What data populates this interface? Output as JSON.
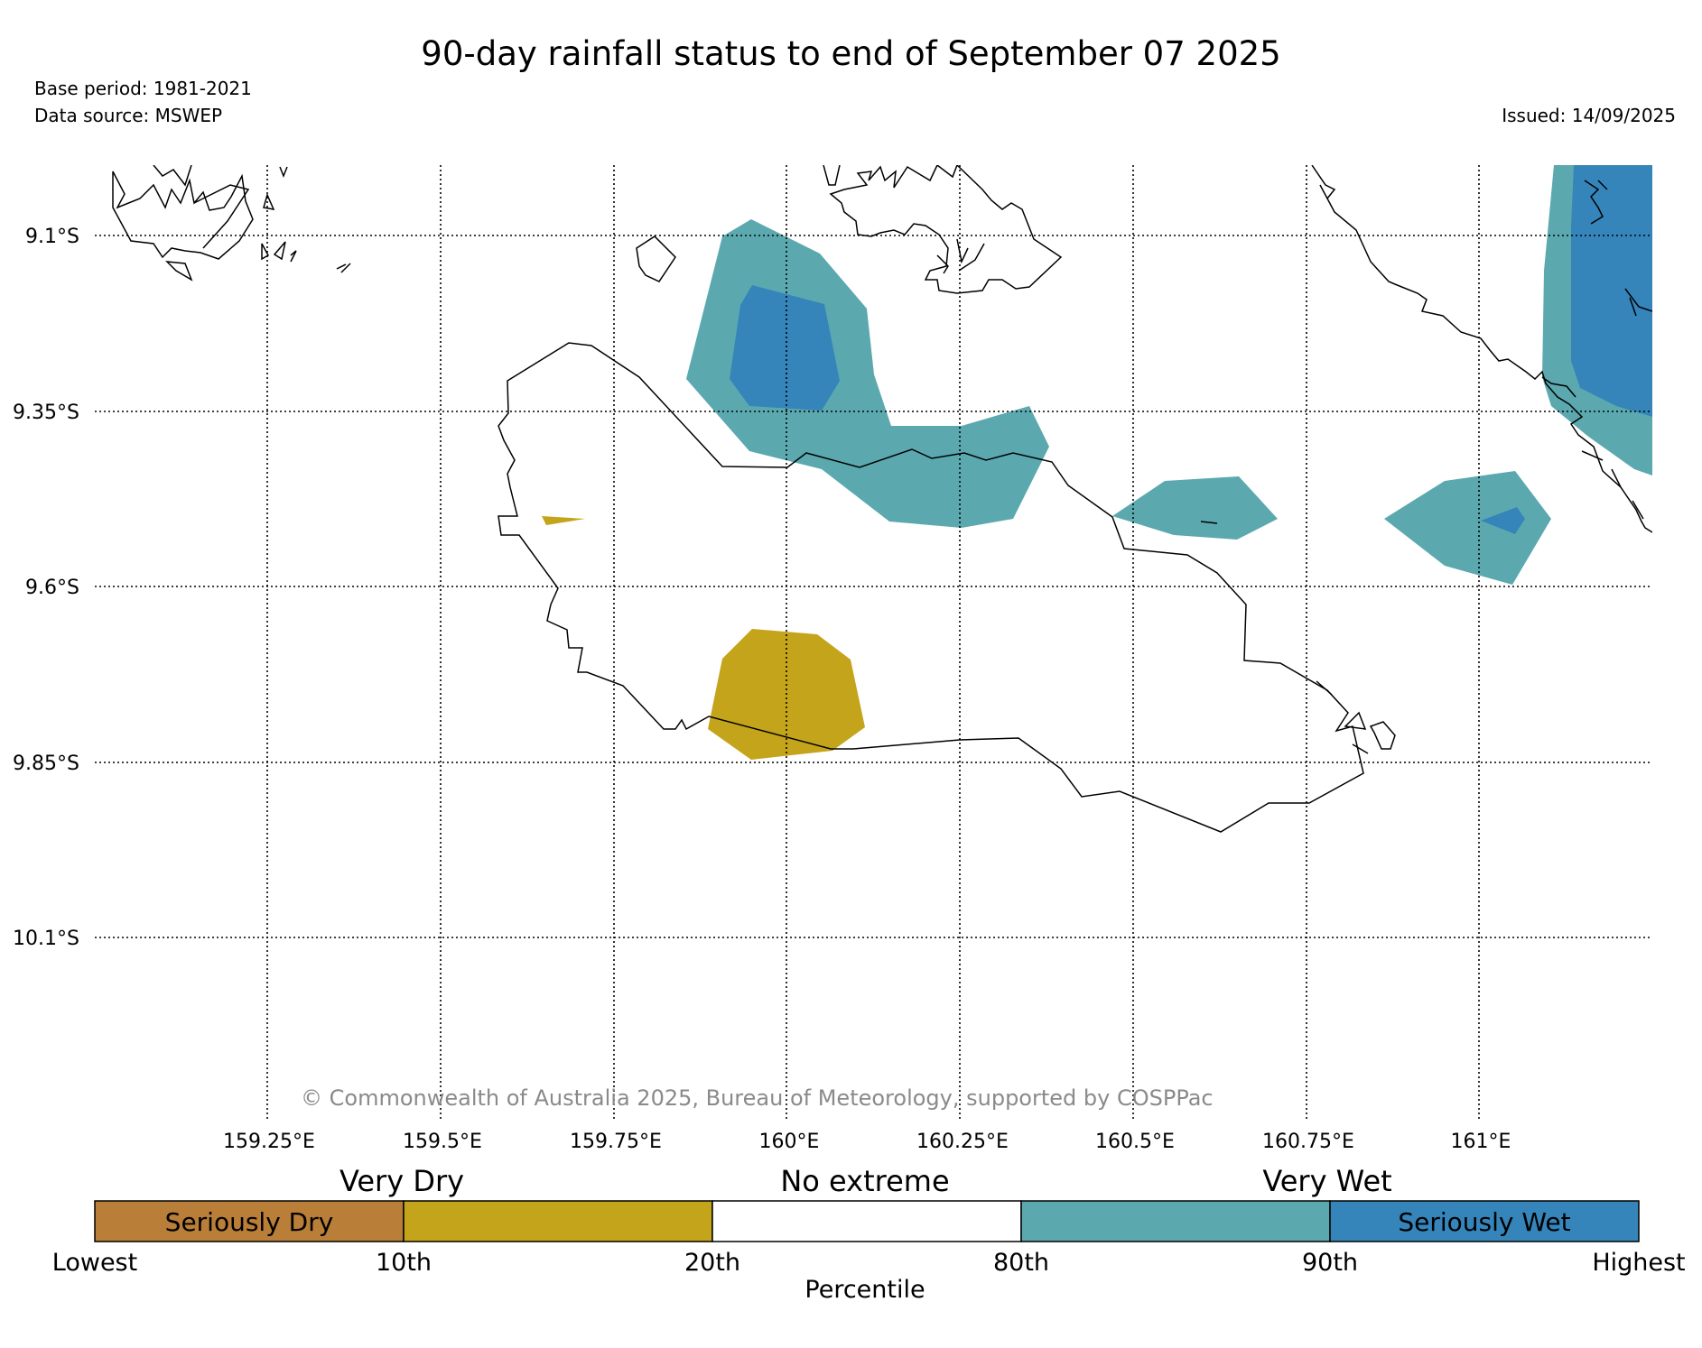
{
  "title": "90-day rainfall status to end of September 07 2025",
  "base_period": "Base period: 1981-2021",
  "data_source": "Data source: MSWEP",
  "issued": "Issued: 14/09/2025",
  "copyright": "© Commonwealth of Australia 2025, Bureau of Meteorology, supported by COSPPac",
  "map": {
    "lat_labels": [
      "9.1°S",
      "9.35°S",
      "9.6°S",
      "9.85°S",
      "10.1°S"
    ],
    "lon_labels": [
      "159.25°E",
      "159.5°E",
      "159.75°E",
      "160°E",
      "160.25°E",
      "160.5°E",
      "160.75°E",
      "161°E"
    ],
    "gridlines": "dotted"
  },
  "legend": {
    "headings": {
      "very_dry": "Very Dry",
      "no_extreme": "No extreme",
      "very_wet": "Very Wet"
    },
    "categories": [
      {
        "label": "Seriously Dry",
        "color": "#b97e38"
      },
      {
        "label": "",
        "color": "#c4a41b"
      },
      {
        "label": "",
        "color": "#ffffff"
      },
      {
        "label": "",
        "color": "#5ba9af"
      },
      {
        "label": "Seriously Wet",
        "color": "#3585bb"
      }
    ],
    "ticks": [
      "Lowest",
      "10th",
      "20th",
      "80th",
      "90th",
      "Highest"
    ],
    "axis_label": "Percentile"
  }
}
